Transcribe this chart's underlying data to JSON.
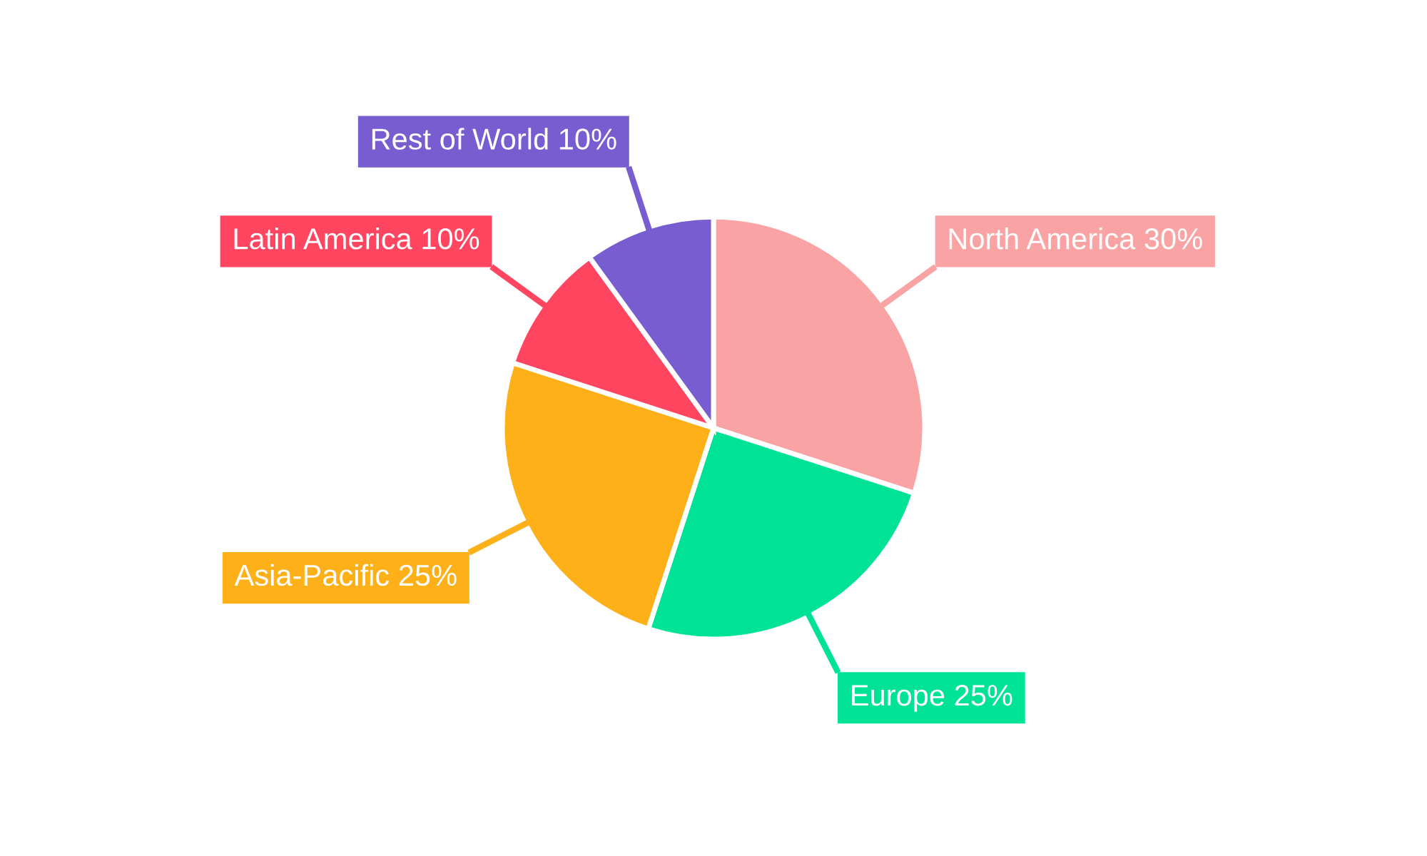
{
  "chart_data": {
    "type": "pie",
    "categories": [
      "North America",
      "Europe",
      "Asia-Pacific",
      "Latin America",
      "Rest of World"
    ],
    "values": [
      30,
      25,
      25,
      10,
      10
    ],
    "value_labels": [
      "30%",
      "25%",
      "25%",
      "10%",
      "10%"
    ],
    "colors": [
      "#f9a3a4",
      "#00e396",
      "#feb019",
      "#ff4560",
      "#775dd0"
    ],
    "legend": false
  }
}
